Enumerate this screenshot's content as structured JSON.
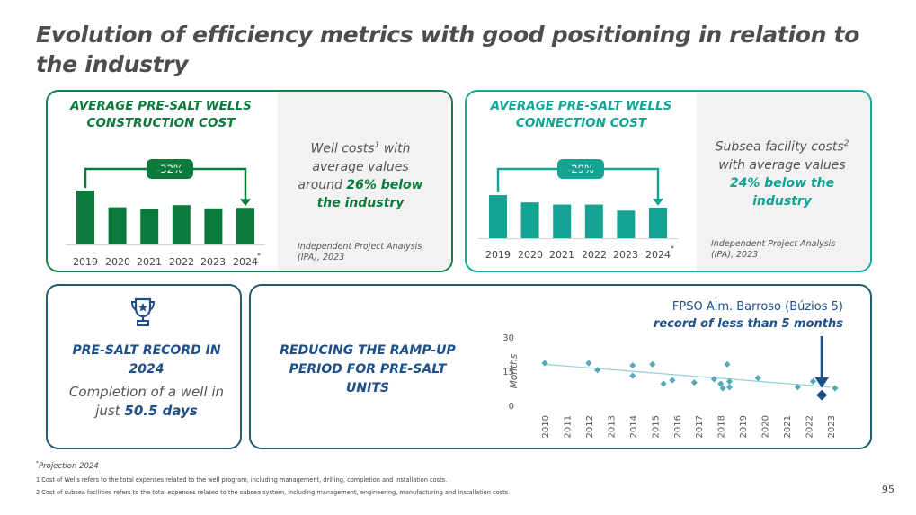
{
  "title": "Evolution of efficiency metrics with good positioning in relation to the industry",
  "card1": {
    "title": "AVERAGE PRE-SALT WELLS CONSTRUCTION COST",
    "badge": "-32%",
    "desc_pre": "Well costs",
    "desc_sup": "1",
    "desc_mid": " with average values around ",
    "desc_bold": "26% below the industry",
    "source": "Independent Project Analysis (IPA), 2023",
    "last_sup": "*"
  },
  "card2": {
    "title": "AVERAGE  PRE-SALT WELLS CONNECTION COST",
    "badge": "-29%",
    "desc_pre": "Subsea facility costs",
    "desc_sup": "2",
    "desc_mid": " with average values ",
    "desc_bold": "24% below the industry",
    "source": "Independent Project Analysis (IPA), 2023",
    "last_sup": "*"
  },
  "card3": {
    "icon": "trophy-icon",
    "title": "PRE-SALT RECORD IN 2024",
    "desc_pre": "Completion of a well in just ",
    "desc_bold": "50.5 days"
  },
  "card4": {
    "title": "REDUCING THE RAMP-UP PERIOD FOR PRE-SALT UNITS",
    "annot_line1": "FPSO Alm. Barroso (Búzios 5)",
    "annot_line2": "record of less than 5 months"
  },
  "chart_data": [
    {
      "type": "bar",
      "title": "AVERAGE PRE-SALT WELLS CONSTRUCTION COST",
      "categories": [
        "2019",
        "2020",
        "2021",
        "2022",
        "2023",
        "2024"
      ],
      "values": [
        100,
        69,
        66,
        73,
        67,
        68
      ],
      "ylim": [
        0,
        100
      ],
      "annotation": "-32%",
      "color": "#0b7a3b"
    },
    {
      "type": "bar",
      "title": "AVERAGE  PRE-SALT WELLS CONNECTION COST",
      "categories": [
        "2019",
        "2020",
        "2021",
        "2022",
        "2023",
        "2024"
      ],
      "values": [
        100,
        83,
        78,
        78,
        64,
        71
      ],
      "ylim": [
        0,
        100
      ],
      "annotation": "-29%",
      "color": "#14a393"
    },
    {
      "type": "scatter",
      "title": "REDUCING THE RAMP-UP PERIOD FOR PRE-SALT UNITS",
      "ylabel": "Months",
      "ylim": [
        0,
        30
      ],
      "yticks": [
        0,
        15,
        30
      ],
      "xlim": [
        2010,
        2023
      ],
      "xticks": [
        "2010",
        "2011",
        "2012",
        "2013",
        "2014",
        "2015",
        "2016",
        "2017",
        "2018",
        "2019",
        "2020",
        "2021",
        "2022",
        "2023"
      ],
      "points": [
        {
          "x": 2010.0,
          "y": 18.5
        },
        {
          "x": 2012.0,
          "y": 18.5
        },
        {
          "x": 2012.4,
          "y": 15.5
        },
        {
          "x": 2014.0,
          "y": 17.5
        },
        {
          "x": 2014.0,
          "y": 13.0
        },
        {
          "x": 2014.9,
          "y": 18.0
        },
        {
          "x": 2015.4,
          "y": 9.5
        },
        {
          "x": 2015.8,
          "y": 11.0
        },
        {
          "x": 2016.8,
          "y": 10.0
        },
        {
          "x": 2017.7,
          "y": 11.5
        },
        {
          "x": 2018.0,
          "y": 9.5
        },
        {
          "x": 2018.1,
          "y": 7.5
        },
        {
          "x": 2018.3,
          "y": 18.0
        },
        {
          "x": 2018.4,
          "y": 10.5
        },
        {
          "x": 2018.4,
          "y": 8.0
        },
        {
          "x": 2019.7,
          "y": 12.0
        },
        {
          "x": 2021.5,
          "y": 8.0
        },
        {
          "x": 2022.2,
          "y": 10.5
        },
        {
          "x": 2023.2,
          "y": 7.5
        }
      ],
      "highlight": {
        "x": 2022.6,
        "y": 4.5,
        "label": "FPSO Alm. Barroso (Búzios 5)"
      },
      "trendline": {
        "from": [
          2010,
          18.0
        ],
        "to": [
          2023,
          8.0
        ]
      },
      "color": "#55aaba"
    }
  ],
  "footnotes": {
    "projection": "Projection 2024",
    "projection_sup": "*",
    "note1": "1 Cost of Wells refers to the total expenses related to the well program, including management, drilling, completion and installation costs.",
    "note2": "2 Cost of subsea facilities refers to the total expenses related to the subsea system, including management, engineering, manufacturing and installation costs."
  },
  "page_number": "95"
}
